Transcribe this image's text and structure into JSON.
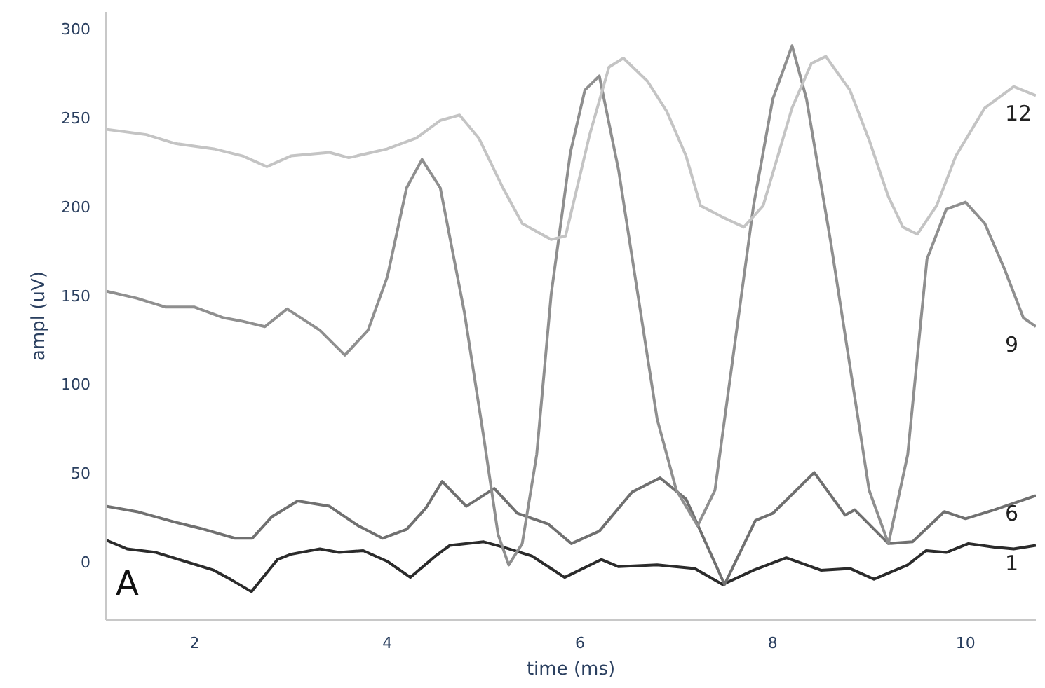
{
  "chart_data": {
    "type": "line",
    "xlabel": "time (ms)",
    "ylabel": "ampl (uV)",
    "xlim": [
      1.08,
      10.73
    ],
    "ylim": [
      -33,
      309
    ],
    "xticks": [
      2,
      4,
      6,
      8,
      10
    ],
    "yticks": [
      0,
      50,
      100,
      150,
      200,
      250,
      300
    ],
    "grid": false,
    "annotations": [
      "A"
    ],
    "series": [
      {
        "name": "1",
        "color": "#2b2b2b",
        "x": [
          1.08,
          1.3,
          1.6,
          1.9,
          2.2,
          2.37,
          2.59,
          2.86,
          3.0,
          3.3,
          3.5,
          3.75,
          4.0,
          4.24,
          4.5,
          4.65,
          5.0,
          5.2,
          5.5,
          5.84,
          6.22,
          6.4,
          6.8,
          7.19,
          7.48,
          7.8,
          8.14,
          8.5,
          8.8,
          9.05,
          9.4,
          9.59,
          9.8,
          10.03,
          10.3,
          10.5,
          10.73
        ],
        "values": [
          12,
          7,
          5,
          0,
          -5,
          -10,
          -17,
          1,
          4,
          7,
          5,
          6,
          0,
          -9,
          3,
          9,
          11,
          8,
          3,
          -9,
          1,
          -3,
          -2,
          -4,
          -13,
          -5,
          2,
          -5,
          -4,
          -10,
          -2,
          6,
          5,
          10,
          8,
          7,
          9
        ]
      },
      {
        "name": "6",
        "color": "#707070",
        "x": [
          1.08,
          1.4,
          1.8,
          2.1,
          2.42,
          2.6,
          2.8,
          3.07,
          3.4,
          3.7,
          3.95,
          4.2,
          4.4,
          4.57,
          4.82,
          5.11,
          5.35,
          5.67,
          5.91,
          6.2,
          6.54,
          6.83,
          7.1,
          7.5,
          7.82,
          8.0,
          8.43,
          8.75,
          8.85,
          9.2,
          9.45,
          9.78,
          10.0,
          10.3,
          10.73
        ],
        "values": [
          31,
          28,
          22,
          18,
          13,
          13,
          25,
          34,
          31,
          20,
          13,
          18,
          30,
          45,
          31,
          41,
          27,
          21,
          10,
          17,
          39,
          47,
          35,
          -13,
          23,
          27,
          50,
          26,
          29,
          10,
          11,
          28,
          24,
          29,
          37
        ]
      },
      {
        "name": "9",
        "color": "#8f8f8f",
        "x": [
          1.08,
          1.4,
          1.7,
          2.0,
          2.3,
          2.5,
          2.73,
          2.96,
          3.3,
          3.56,
          3.8,
          4.0,
          4.2,
          4.36,
          4.55,
          4.8,
          5.0,
          5.15,
          5.26,
          5.4,
          5.55,
          5.7,
          5.9,
          6.05,
          6.2,
          6.4,
          6.6,
          6.8,
          7.0,
          7.22,
          7.4,
          7.6,
          7.8,
          8.0,
          8.2,
          8.35,
          8.6,
          8.8,
          9.0,
          9.2,
          9.4,
          9.6,
          9.8,
          10.0,
          10.2,
          10.4,
          10.6,
          10.73
        ],
        "values": [
          152,
          148,
          143,
          143,
          137,
          135,
          132,
          142,
          130,
          116,
          130,
          160,
          210,
          226,
          210,
          140,
          70,
          15,
          -2,
          10,
          60,
          150,
          230,
          265,
          273,
          220,
          150,
          80,
          40,
          20,
          40,
          120,
          200,
          260,
          290,
          260,
          180,
          110,
          40,
          10,
          60,
          170,
          198,
          202,
          190,
          165,
          137,
          132
        ]
      },
      {
        "name": "12",
        "color": "#c4c4c4",
        "x": [
          1.08,
          1.5,
          1.8,
          2.2,
          2.5,
          2.75,
          3.0,
          3.4,
          3.6,
          4.0,
          4.3,
          4.55,
          4.75,
          4.95,
          5.2,
          5.4,
          5.7,
          5.85,
          6.1,
          6.3,
          6.45,
          6.7,
          6.9,
          7.1,
          7.25,
          7.5,
          7.7,
          7.9,
          8.2,
          8.4,
          8.55,
          8.8,
          9.0,
          9.2,
          9.35,
          9.5,
          9.7,
          9.9,
          10.2,
          10.5,
          10.73
        ],
        "values": [
          243,
          240,
          235,
          232,
          228,
          222,
          228,
          230,
          227,
          232,
          238,
          248,
          251,
          238,
          210,
          190,
          181,
          183,
          240,
          278,
          283,
          270,
          253,
          228,
          200,
          193,
          188,
          200,
          255,
          280,
          284,
          265,
          237,
          205,
          188,
          184,
          200,
          228,
          255,
          267,
          262
        ]
      }
    ]
  }
}
